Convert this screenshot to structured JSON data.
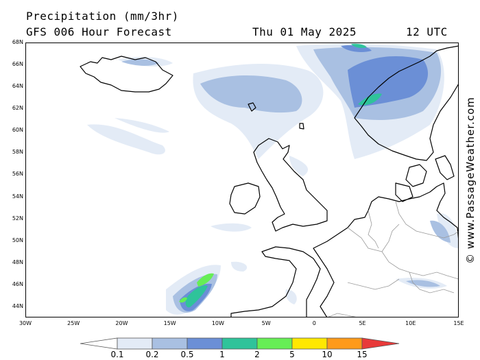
{
  "header": {
    "title": "Precipitation (mm/3hr)",
    "subtitle": "GFS 006 Hour Forecast",
    "date": "Thu 01 May 2025",
    "time": "12 UTC"
  },
  "credit": "© www.PassageWeather.com",
  "map": {
    "lon_range": [
      -30,
      15
    ],
    "lat_range": [
      43,
      68
    ],
    "lat_ticks": [
      "44N",
      "46N",
      "48N",
      "50N",
      "52N",
      "54N",
      "56N",
      "58N",
      "60N",
      "62N",
      "64N",
      "66N",
      "68N"
    ],
    "lat_values": [
      44,
      46,
      48,
      50,
      52,
      54,
      56,
      58,
      60,
      62,
      64,
      66,
      68
    ],
    "lon_ticks": [
      "30W",
      "25W",
      "20W",
      "15W",
      "10W",
      "5W",
      "0",
      "5E",
      "10E",
      "15E"
    ],
    "lon_values": [
      -30,
      -25,
      -20,
      -15,
      -10,
      -5,
      0,
      5,
      10,
      15
    ]
  },
  "legend": {
    "labels": [
      "0.1",
      "0.2",
      "0.5",
      "1",
      "2",
      "5",
      "10",
      "15"
    ],
    "colors": [
      "#ffffff",
      "#e3ebf6",
      "#a9c0e2",
      "#6b8fd6",
      "#2fc39a",
      "#66ee55",
      "#ffe800",
      "#ff9a1a",
      "#e83a3a"
    ]
  },
  "colors": {
    "land": "#ffffff",
    "sea": "#ffffff",
    "coast": "#000000",
    "border": "#999999"
  }
}
